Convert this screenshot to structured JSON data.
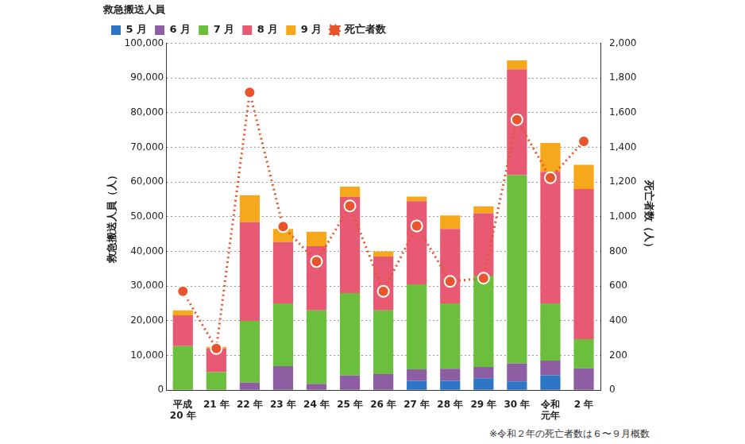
{
  "chart_data": {
    "type": "bar",
    "stacked": true,
    "grid": true,
    "legend": "top-left",
    "legend_title": "救急搬送人員",
    "y_label": "救急搬送人員（人）",
    "y2_label": "死亡者数（人）",
    "annotation": "※令和２年の死亡者数は６〜９月概数",
    "categories": [
      "平成\n20 年",
      "21 年",
      "22 年",
      "23 年",
      "24 年",
      "25 年",
      "26 年",
      "27 年",
      "28 年",
      "29 年",
      "30 年",
      "令和\n元年",
      "2 年"
    ],
    "series": [
      {
        "name": "5 月",
        "color": "#2e75c5",
        "values": [
          null,
          null,
          null,
          null,
          null,
          null,
          null,
          2700,
          2700,
          3400,
          2500,
          4300,
          null
        ]
      },
      {
        "name": "6 月",
        "color": "#8e5ea2",
        "values": [
          null,
          null,
          2200,
          6900,
          1800,
          4200,
          4600,
          3300,
          3500,
          3300,
          5200,
          4200,
          6300
        ]
      },
      {
        "name": "7 月",
        "color": "#6cbf3c",
        "values": [
          12700,
          5200,
          17800,
          18100,
          21200,
          23800,
          18400,
          24500,
          18800,
          26300,
          54300,
          16500,
          8400
        ]
      },
      {
        "name": "8 月",
        "color": "#e85a73",
        "values": [
          8900,
          6800,
          28500,
          17700,
          18500,
          27700,
          15500,
          24000,
          21500,
          18000,
          30500,
          38000,
          43300
        ]
      },
      {
        "name": "9 月",
        "color": "#f6a81d",
        "values": [
          1400,
          500,
          7700,
          3800,
          4200,
          3000,
          1500,
          1300,
          3900,
          2000,
          2600,
          8300,
          7000
        ]
      },
      {
        "name": "死亡者数",
        "type": "line",
        "axis": "y2",
        "color": "#e8542c",
        "marker": "circle",
        "line_style": "dotted",
        "values": [
          570,
          240,
          1718,
          943,
          742,
          1062,
          570,
          947,
          627,
          646,
          1560,
          1225,
          1435
        ]
      }
    ],
    "ylim": [
      0,
      100000
    ],
    "yticks": [
      0,
      {
        "value": 10000,
        "label": "10,000"
      },
      {
        "value": 20000,
        "label": "20,000"
      },
      {
        "value": 30000,
        "label": "30,000"
      },
      {
        "value": 40000,
        "label": "40,000"
      },
      {
        "value": 50000,
        "label": "50,000"
      },
      {
        "value": 60000,
        "label": "60,000"
      },
      {
        "value": 70000,
        "label": "70,000"
      },
      {
        "value": 80000,
        "label": "80,000"
      },
      {
        "value": 90000,
        "label": "90,000"
      },
      {
        "value": 100000,
        "label": "100,000"
      }
    ],
    "y2lim": [
      0,
      2000
    ],
    "y2ticks": [
      0,
      200,
      400,
      600,
      800,
      {
        "value": 1000,
        "label": "1,000"
      },
      {
        "value": 1200,
        "label": "1,200"
      },
      {
        "value": 1400,
        "label": "1,400"
      },
      {
        "value": 1600,
        "label": "1,600"
      },
      {
        "value": 1800,
        "label": "1,800"
      },
      {
        "value": 2000,
        "label": "2,000"
      }
    ]
  }
}
